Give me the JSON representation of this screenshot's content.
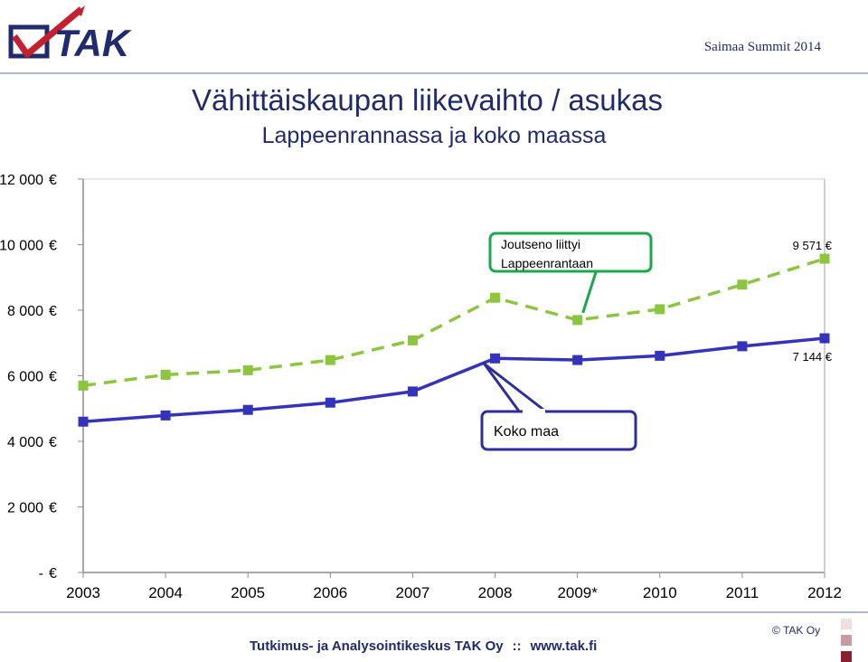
{
  "header": {
    "logo_text": "TAK",
    "event": "Saimaa Summit 2014"
  },
  "chart_data": {
    "type": "line",
    "title": "Vähittäiskaupan liikevaihto / asukas",
    "subtitle": "Lappeenrannassa ja koko maassa",
    "categories": [
      "2003",
      "2004",
      "2005",
      "2006",
      "2007",
      "2008",
      "2009*",
      "2010",
      "2011",
      "2012"
    ],
    "y_ticks": [
      {
        "value": 0,
        "label": "-"
      },
      {
        "value": 2000,
        "label": "2 000"
      },
      {
        "value": 4000,
        "label": "4 000"
      },
      {
        "value": 6000,
        "label": "6 000"
      },
      {
        "value": 8000,
        "label": "8 000"
      },
      {
        "value": 10000,
        "label": "10 000"
      },
      {
        "value": 12000,
        "label": "12 000"
      }
    ],
    "y_unit": "€",
    "ylim": [
      0,
      12000
    ],
    "series": [
      {
        "color": "#8cc63f",
        "style": "dashed",
        "values": [
          5700,
          6030,
          6170,
          6480,
          7080,
          8380,
          7700,
          8030,
          8780,
          9571
        ],
        "end_label": "9 571 €"
      },
      {
        "color": "#3333bb",
        "style": "solid",
        "values": [
          4600,
          4790,
          4960,
          5180,
          5520,
          6530,
          6480,
          6610,
          6900,
          7144
        ],
        "end_label": "7 144 €"
      }
    ],
    "annotations": [
      {
        "text_lines": [
          "Joutseno liittyi",
          "Lappeenrantaan"
        ],
        "color": "#1aa84a"
      },
      {
        "text_lines": [
          "Koko maa"
        ],
        "color": "#2b2f9e"
      }
    ],
    "grid": false
  },
  "footer": {
    "org": "Tutkimus- ja Analysointikeskus TAK Oy",
    "separator": "::",
    "url": "www.tak.fi",
    "copyright": "© TAK Oy"
  }
}
